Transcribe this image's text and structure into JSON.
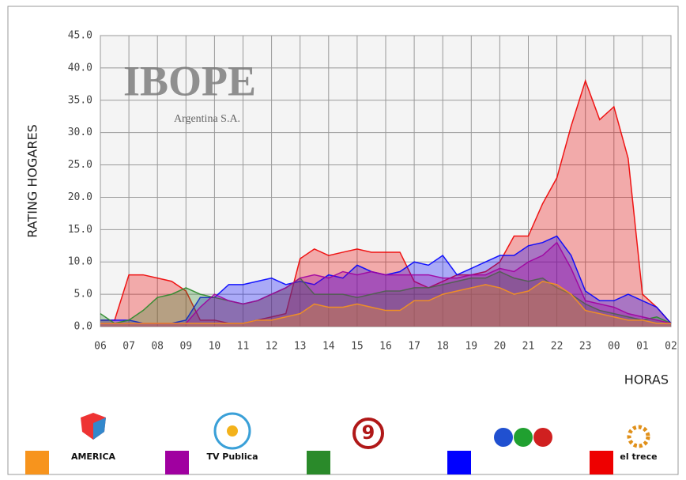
{
  "chart_data": {
    "type": "area",
    "watermark": "IBOPE",
    "watermark_subtitle": "Argentina S.A.",
    "y_label": "RATING HOGARES",
    "x_label": "HORAS",
    "xlim": [
      0,
      20
    ],
    "ylim": [
      0,
      45
    ],
    "xticks": [
      {
        "value": 0,
        "label": "06"
      },
      {
        "value": 1,
        "label": "07"
      },
      {
        "value": 2,
        "label": "08"
      },
      {
        "value": 3,
        "label": "09"
      },
      {
        "value": 4,
        "label": "10"
      },
      {
        "value": 5,
        "label": "11"
      },
      {
        "value": 6,
        "label": "12"
      },
      {
        "value": 7,
        "label": "13"
      },
      {
        "value": 8,
        "label": "14"
      },
      {
        "value": 9,
        "label": "15"
      },
      {
        "value": 10,
        "label": "16"
      },
      {
        "value": 11,
        "label": "17"
      },
      {
        "value": 12,
        "label": "18"
      },
      {
        "value": 13,
        "label": "19"
      },
      {
        "value": 14,
        "label": "20"
      },
      {
        "value": 15,
        "label": "21"
      },
      {
        "value": 16,
        "label": "22"
      },
      {
        "value": 17,
        "label": "23"
      },
      {
        "value": 18,
        "label": "00"
      },
      {
        "value": 19,
        "label": "01"
      },
      {
        "value": 20,
        "label": "02"
      }
    ],
    "yticks": [
      {
        "value": 0,
        "label": "0.0"
      },
      {
        "value": 5,
        "label": "5.0"
      },
      {
        "value": 10,
        "label": "10.0"
      },
      {
        "value": 15,
        "label": "15.0"
      },
      {
        "value": 20,
        "label": "20.0"
      },
      {
        "value": 25,
        "label": "25.0"
      },
      {
        "value": 30,
        "label": "30.0"
      },
      {
        "value": 35,
        "label": "35.0"
      },
      {
        "value": 40,
        "label": "40.0"
      },
      {
        "value": 45,
        "label": "45.0"
      }
    ],
    "grid": true,
    "x": [
      0,
      0.5,
      1,
      1.5,
      2,
      2.5,
      3,
      3.5,
      4,
      4.5,
      5,
      5.5,
      6,
      6.5,
      7,
      7.5,
      8,
      8.5,
      9,
      9.5,
      10,
      10.5,
      11,
      11.5,
      12,
      12.5,
      13,
      13.5,
      14,
      14.5,
      15,
      15.5,
      16,
      16.5,
      17,
      17.5,
      18,
      18.5,
      19,
      19.5,
      20
    ],
    "series": [
      {
        "name": "AMERICA",
        "color": "#f7941d",
        "values": [
          0.5,
          0.5,
          0.5,
          0.5,
          0.5,
          0.5,
          0.5,
          0.5,
          0.5,
          0.5,
          0.5,
          1,
          1,
          1.5,
          2,
          3.5,
          3,
          3,
          3.5,
          3,
          2.5,
          2.5,
          4,
          4,
          5,
          5.5,
          6,
          6.5,
          6,
          5,
          5.5,
          7,
          6.5,
          5,
          2.5,
          2,
          1.5,
          1,
          1,
          0.5,
          0.5
        ]
      },
      {
        "name": "TV Publica",
        "color": "#a000a0",
        "values": [
          0.5,
          0.5,
          0.5,
          0.5,
          0.5,
          0.5,
          0.5,
          3,
          5,
          4,
          3.5,
          4,
          5,
          6,
          7.5,
          8,
          7.5,
          8.5,
          8,
          8.5,
          8,
          8,
          8,
          8,
          7.5,
          7.5,
          8,
          8,
          9,
          8.5,
          10,
          11,
          13,
          9,
          4,
          3.5,
          3,
          2,
          1.5,
          1,
          0.5
        ]
      },
      {
        "name": "9",
        "color": "#2a8a2a",
        "values": [
          2,
          0.5,
          1,
          2.5,
          4.5,
          5,
          6,
          5,
          4.5,
          4,
          3.5,
          4,
          5,
          6,
          7.5,
          5,
          5,
          5,
          4.5,
          5,
          5.5,
          5.5,
          6,
          6,
          6.5,
          7,
          7.5,
          7.5,
          8.5,
          7.5,
          7,
          7.5,
          6,
          5,
          3.5,
          2.5,
          2,
          1.5,
          1,
          1.5,
          0.5
        ]
      },
      {
        "color": "#0000ff",
        "values": [
          1,
          1,
          1,
          0.5,
          0.5,
          0.5,
          1,
          4.5,
          4.5,
          6.5,
          6.5,
          7,
          7.5,
          6.5,
          7,
          6.5,
          8,
          7.5,
          9.5,
          8.5,
          8,
          8.5,
          10,
          9.5,
          11,
          8,
          9,
          10,
          11,
          11,
          12.5,
          13,
          14,
          11,
          5.5,
          4,
          4,
          5,
          4,
          3,
          0.5
        ]
      },
      {
        "name": "el trece",
        "color": "#ee0000",
        "values": [
          1,
          1,
          8,
          8,
          7.5,
          7,
          5.5,
          1,
          1,
          0.5,
          0.5,
          1,
          1.5,
          2,
          10.5,
          12,
          11,
          11.5,
          12,
          11.5,
          11.5,
          11.5,
          7,
          6,
          7,
          8,
          8,
          8.5,
          10,
          14,
          14,
          19,
          23,
          31,
          38,
          32,
          34,
          26,
          5,
          3,
          0.5
        ]
      }
    ]
  }
}
